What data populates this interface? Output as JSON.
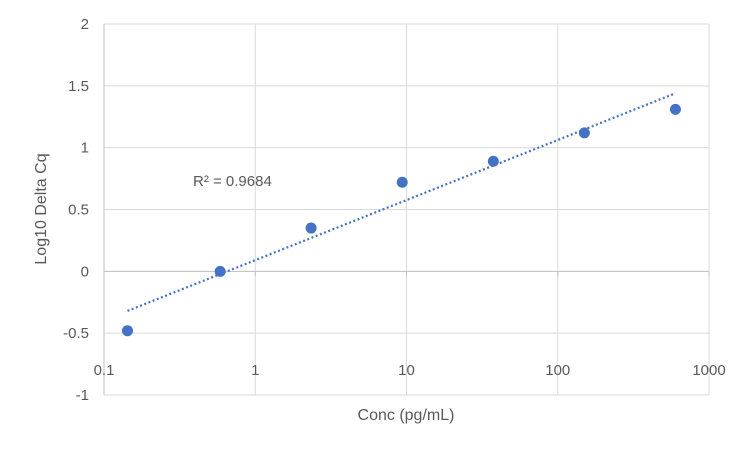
{
  "chart_data": {
    "type": "scatter",
    "xlabel": "Conc (pg/mL)",
    "ylabel": "Log10 Delta Cq",
    "x_scale": "log",
    "xlim": [
      0.1,
      1000
    ],
    "ylim": [
      -1,
      2
    ],
    "x_ticks": [
      "0.1",
      "1",
      "10",
      "100",
      "1000"
    ],
    "y_ticks": [
      "-1",
      "-0.5",
      "0",
      "0.5",
      "1",
      "1.5",
      "2"
    ],
    "grid": true,
    "marker_color": "#4472C4",
    "trendline_color": "#4472C4",
    "series": [
      {
        "x": [
          0.143,
          0.586,
          2.34,
          9.37,
          37.5,
          150,
          600
        ],
        "y": [
          -0.48,
          0.0,
          0.35,
          0.72,
          0.89,
          1.12,
          1.31
        ]
      }
    ],
    "trendline": {
      "type": "logarithmic",
      "x_range": [
        0.143,
        600
      ],
      "y_range": [
        -0.32,
        1.44
      ]
    },
    "annotations": [
      {
        "text": "R² = 0.9684"
      }
    ]
  }
}
